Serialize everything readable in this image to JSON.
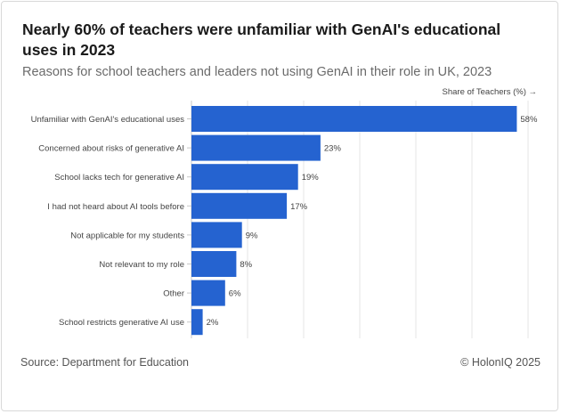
{
  "title": "Nearly 60% of teachers were unfamiliar with GenAI's educational uses in 2023",
  "subtitle": "Reasons for school teachers and leaders not using GenAI in their role in UK, 2023",
  "source": "Source: Department for Education",
  "credit": "© HolonIQ 2025",
  "colors": {
    "bar": "#2563d0",
    "grid": "#e6e6e6",
    "axis": "#c8c8c8",
    "label": "#444444",
    "value": "#444444"
  },
  "chart_data": {
    "type": "bar",
    "orientation": "horizontal",
    "categories": [
      "Unfamiliar with GenAI's educational uses",
      "Concerned about risks of generative AI",
      "School lacks tech for generative AI",
      "I had not heard about AI tools before",
      "Not applicable for my students",
      "Not relevant to my role",
      "Other",
      "School restricts generative AI use"
    ],
    "values": [
      58,
      23,
      19,
      17,
      9,
      8,
      6,
      2
    ],
    "value_labels": [
      "58%",
      "23%",
      "19%",
      "17%",
      "9%",
      "8%",
      "6%",
      "2%"
    ],
    "xlabel": "Share of Teachers (%) →",
    "ylabel": "",
    "xlim": [
      0,
      60
    ],
    "grid": true,
    "gridlines_at": [
      0,
      10,
      20,
      30,
      40,
      50,
      60
    ]
  }
}
